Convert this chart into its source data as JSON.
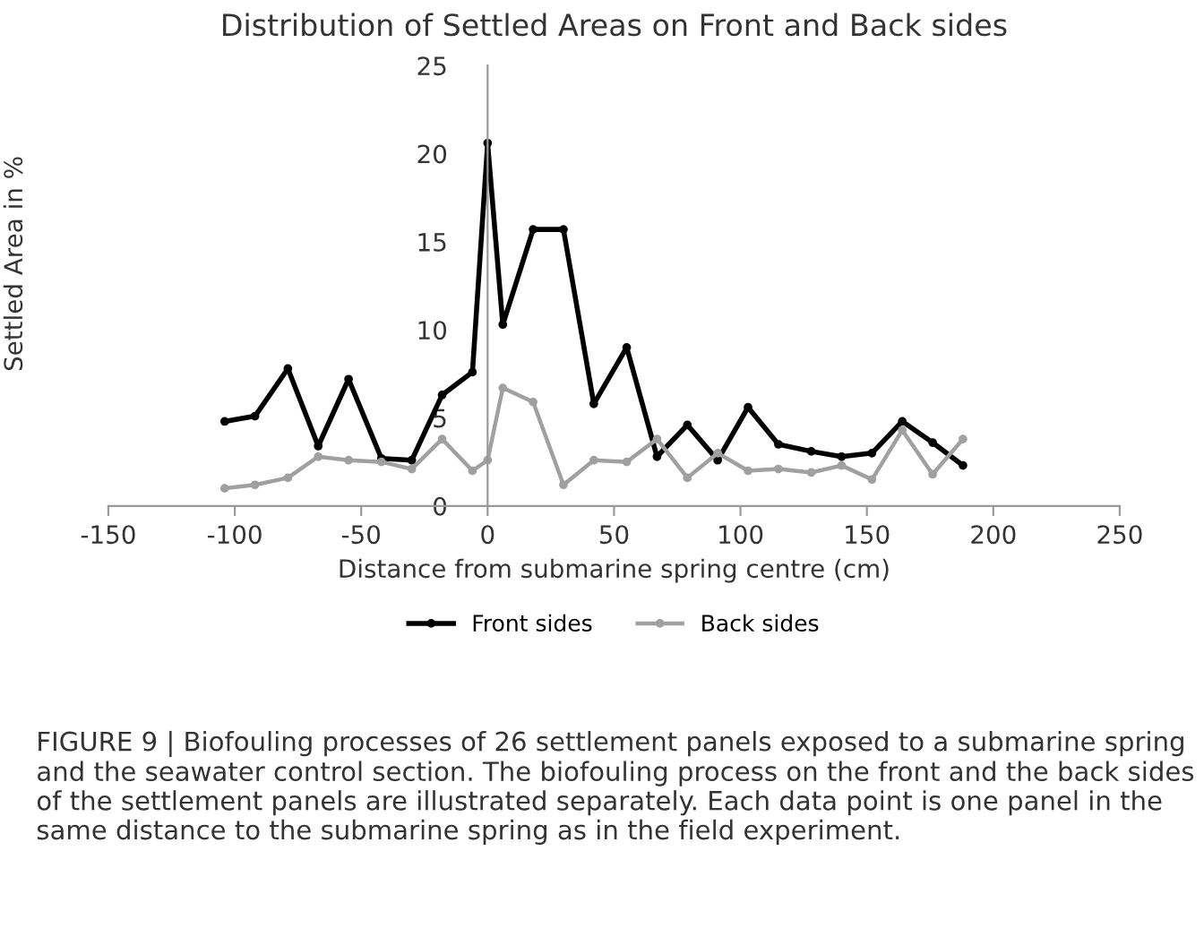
{
  "chart_data": {
    "type": "line",
    "title": "Distribution of Settled Areas on Front and Back sides",
    "xlabel": "Distance from submarine spring centre (cm)",
    "ylabel": "Settled Area in %",
    "xlim": [
      -150,
      250
    ],
    "xticks": [
      -150,
      -100,
      -50,
      0,
      50,
      100,
      150,
      200,
      250
    ],
    "ylim": [
      0,
      25
    ],
    "yticks": [
      0,
      5,
      10,
      15,
      20,
      25
    ],
    "x": [
      -104,
      -92,
      -79,
      -67,
      -55,
      -42,
      -30,
      -18,
      -6,
      0,
      6,
      18,
      30,
      42,
      55,
      67,
      79,
      91,
      103,
      115,
      128,
      140,
      152,
      164,
      176,
      188
    ],
    "series": [
      {
        "name": "Front sides",
        "color": "#000000",
        "values": [
          4.8,
          5.1,
          7.8,
          3.4,
          7.2,
          2.7,
          2.6,
          6.3,
          7.6,
          20.6,
          10.3,
          15.7,
          15.7,
          5.8,
          9.0,
          2.8,
          4.6,
          2.6,
          5.6,
          3.5,
          3.1,
          2.8,
          3.0,
          4.8,
          3.6,
          2.3
        ]
      },
      {
        "name": "Back sides",
        "color": "#a0a0a0",
        "values": [
          1.0,
          1.2,
          1.6,
          2.8,
          2.6,
          2.5,
          2.1,
          3.8,
          2.0,
          2.6,
          6.7,
          5.9,
          1.2,
          2.6,
          2.5,
          3.8,
          1.6,
          3.0,
          2.0,
          2.1,
          1.9,
          2.3,
          1.5,
          4.3,
          1.8,
          3.8
        ]
      }
    ],
    "marker": "circle",
    "line_style": "solid",
    "grid": false,
    "legend": "bottom",
    "annotations": [
      "FIGURE 9 | Biofouling processes of 26 settlement panels exposed to a submarine spring and the seawater control section. The biofouling process on the front and the back sides of the settlement panels are illustrated separately. Each data point is one panel in the same distance to the submarine spring as in the field experiment."
    ]
  }
}
